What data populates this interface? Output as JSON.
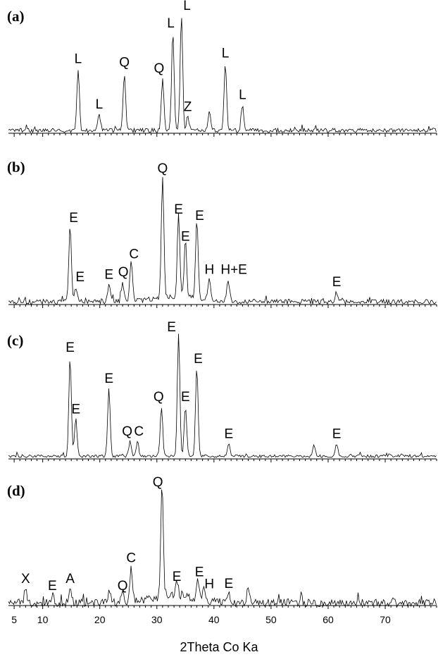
{
  "chart_data": {
    "type": "line",
    "xlabel": "2Theta Co Ka",
    "xlim": [
      4,
      79
    ],
    "xticks": [
      5,
      10,
      20,
      30,
      40,
      50,
      60,
      70
    ],
    "grid": false,
    "panels": [
      {
        "label": "(a)",
        "peaks": [
          {
            "x": 16.2,
            "h": 0.53,
            "text": "L"
          },
          {
            "x": 19.9,
            "h": 0.14,
            "text": "L"
          },
          {
            "x": 24.3,
            "h": 0.5,
            "text": "Q"
          },
          {
            "x": 31.0,
            "h": 0.45,
            "text": "Q"
          },
          {
            "x": 32.8,
            "h": 0.85,
            "text": "L"
          },
          {
            "x": 34.3,
            "h": 1.0,
            "text": "L"
          },
          {
            "x": 35.4,
            "h": 0.13,
            "text": "Z"
          },
          {
            "x": 39.2,
            "h": 0.15,
            "text": ""
          },
          {
            "x": 42.0,
            "h": 0.58,
            "text": "L"
          },
          {
            "x": 45.0,
            "h": 0.22,
            "text": "L"
          }
        ]
      },
      {
        "label": "(b)",
        "peaks": [
          {
            "x": 14.8,
            "h": 0.6,
            "text": "E"
          },
          {
            "x": 15.8,
            "h": 0.12,
            "text": "E"
          },
          {
            "x": 21.6,
            "h": 0.14,
            "text": "E"
          },
          {
            "x": 24.0,
            "h": 0.16,
            "text": "Q"
          },
          {
            "x": 25.5,
            "h": 0.33,
            "text": "C"
          },
          {
            "x": 31.0,
            "h": 1.0,
            "text": "Q"
          },
          {
            "x": 33.8,
            "h": 0.68,
            "text": "E"
          },
          {
            "x": 35.0,
            "h": 0.46,
            "text": "E"
          },
          {
            "x": 37.0,
            "h": 0.63,
            "text": "E"
          },
          {
            "x": 39.2,
            "h": 0.18,
            "text": "H"
          },
          {
            "x": 42.5,
            "h": 0.18,
            "text": "H+E"
          },
          {
            "x": 61.5,
            "h": 0.08,
            "text": "E"
          }
        ]
      },
      {
        "label": "(c)",
        "peaks": [
          {
            "x": 14.8,
            "h": 0.8,
            "text": "E"
          },
          {
            "x": 15.8,
            "h": 0.3,
            "text": "E"
          },
          {
            "x": 21.6,
            "h": 0.55,
            "text": "E"
          },
          {
            "x": 25.3,
            "h": 0.12,
            "text": "Q"
          },
          {
            "x": 26.6,
            "h": 0.12,
            "text": "C"
          },
          {
            "x": 30.8,
            "h": 0.4,
            "text": "Q"
          },
          {
            "x": 33.8,
            "h": 1.0,
            "text": "E"
          },
          {
            "x": 35.0,
            "h": 0.4,
            "text": "E"
          },
          {
            "x": 37.0,
            "h": 0.72,
            "text": "E"
          },
          {
            "x": 42.6,
            "h": 0.1,
            "text": "E"
          },
          {
            "x": 57.5,
            "h": 0.1,
            "text": ""
          },
          {
            "x": 61.5,
            "h": 0.1,
            "text": "E"
          }
        ]
      },
      {
        "label": "(d)",
        "peaks": [
          {
            "x": 7.0,
            "h": 0.12,
            "text": "X"
          },
          {
            "x": 11.7,
            "h": 0.06,
            "text": "E"
          },
          {
            "x": 14.8,
            "h": 0.12,
            "text": "A"
          },
          {
            "x": 21.7,
            "h": 0.1,
            "text": ""
          },
          {
            "x": 24.0,
            "h": 0.06,
            "text": "Q"
          },
          {
            "x": 25.5,
            "h": 0.3,
            "text": "C"
          },
          {
            "x": 30.9,
            "h": 1.0,
            "text": "Q"
          },
          {
            "x": 33.5,
            "h": 0.14,
            "text": "E"
          },
          {
            "x": 37.2,
            "h": 0.18,
            "text": "E"
          },
          {
            "x": 38.2,
            "h": 0.1,
            "text": "H"
          },
          {
            "x": 42.6,
            "h": 0.08,
            "text": "E"
          },
          {
            "x": 46.0,
            "h": 0.12,
            "text": ""
          }
        ]
      }
    ]
  }
}
